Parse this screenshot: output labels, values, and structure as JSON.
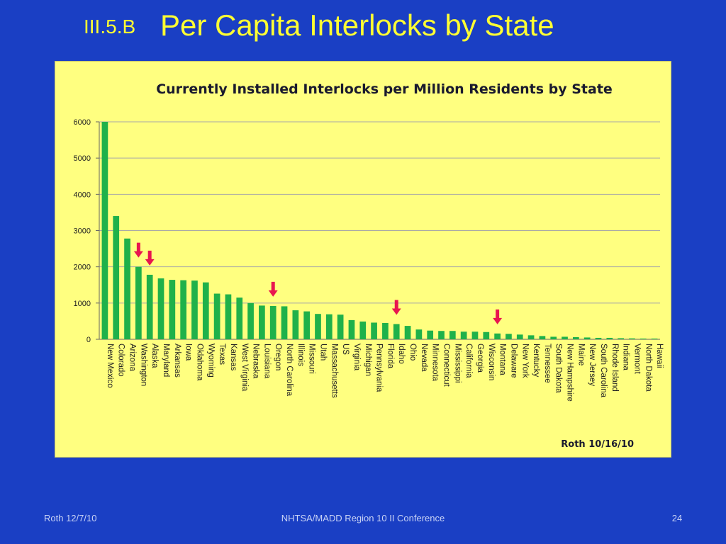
{
  "slide": {
    "section": "III.5.B",
    "title": "Per Capita Interlocks by State",
    "credit": "Roth 10/16/10",
    "footer_left": "Roth 12/7/10",
    "footer_center": "NHTSA/MADD Region 10 II Conference",
    "page_number": "24"
  },
  "colors": {
    "background": "#1a3fc4",
    "title": "#ffff33",
    "chart_bg": "#ffff80",
    "bar": "#1fb14a",
    "arrow": "#e8164f",
    "grid": "#a8a8a8"
  },
  "chart_data": {
    "type": "bar",
    "title": "Currently Installed Interlocks per Million Residents by State",
    "xlabel": "",
    "ylabel": "",
    "ylim": [
      0,
      6000
    ],
    "yticks": [
      0,
      1000,
      2000,
      3000,
      4000,
      5000,
      6000
    ],
    "grid": true,
    "legend": "none",
    "categories": [
      "New Mexico",
      "Colorado",
      "Arizona",
      "Washington",
      "Alaska",
      "Maryland",
      "Arkansas",
      "Iowa",
      "Oklahoma",
      "Wyoming",
      "Texas",
      "Kansas",
      "West Virginia",
      "Nebraska",
      "Louisiana",
      "Oregon",
      "North Carolina",
      "Illinois",
      "Missouri",
      "Utah",
      "Massachusetts",
      "US",
      "Virginia",
      "Michigan",
      "Pennsylvania",
      "Florida",
      "Idaho",
      "Ohio",
      "Nevada",
      "Minnesota",
      "Connecticut",
      "Mississippi",
      "California",
      "Georgia",
      "Wisconsin",
      "Montana",
      "Delaware",
      "New York",
      "Kentucky",
      "Tennessee",
      "South Dakota",
      "New Hampshire",
      "Maine",
      "New Jersey",
      "South Carolina",
      "Rhode Island",
      "Indiana",
      "Vermont",
      "North Dakota",
      "Hawaii"
    ],
    "values": [
      6000,
      3400,
      2780,
      2000,
      1780,
      1680,
      1640,
      1630,
      1620,
      1570,
      1260,
      1240,
      1150,
      1000,
      930,
      920,
      910,
      800,
      770,
      700,
      690,
      680,
      530,
      490,
      460,
      450,
      420,
      370,
      270,
      240,
      230,
      230,
      210,
      210,
      200,
      160,
      150,
      130,
      110,
      90,
      70,
      70,
      60,
      50,
      40,
      40,
      30,
      25,
      20,
      20
    ],
    "highlighted": [
      "Washington",
      "Alaska",
      "Oregon",
      "Idaho",
      "Montana"
    ]
  }
}
